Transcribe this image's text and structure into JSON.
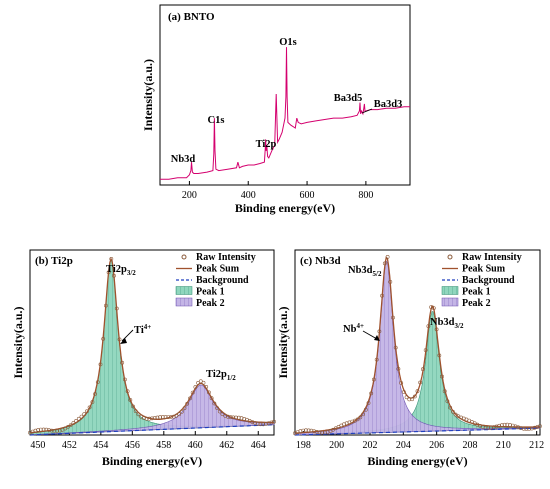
{
  "colors": {
    "survey_line": "#d4006e",
    "peak_sum": "#a0522d",
    "background": "#1f3fbf",
    "raw_marker": "#8a5a3a",
    "peak1_fill": "#7fd0b4",
    "peak2_fill": "#b8a6e0",
    "arrow": "#000000"
  },
  "chart_data": [
    {
      "id": "a",
      "type": "line",
      "title": "(a) BNTO",
      "xlabel": "Binding energy(eV)",
      "ylabel": "Intensity(a.u.)",
      "xlim": [
        100,
        950
      ],
      "xticks": [
        200,
        400,
        600,
        800
      ],
      "ylim": [
        0,
        1
      ],
      "annotations": [
        {
          "text": "Nb3d",
          "x": 207
        },
        {
          "text": "C1s",
          "x": 285
        },
        {
          "text": "Ti2p",
          "x": 459
        },
        {
          "text": "O1s",
          "x": 530
        },
        {
          "text": "Ba3d5",
          "x": 780
        },
        {
          "text": "Ba3d3",
          "x": 795
        }
      ],
      "series": [
        {
          "x": [
            100,
            130,
            160,
            190,
            200,
            205,
            207,
            210,
            215,
            230,
            260,
            280,
            283,
            285,
            287,
            290,
            300,
            330,
            360,
            365,
            370,
            380,
            400,
            420,
            440,
            455,
            458,
            459,
            461,
            463,
            466,
            470,
            480,
            490,
            495,
            500,
            505,
            515,
            525,
            528,
            530,
            532,
            535,
            545,
            560,
            565,
            570,
            580,
            600,
            630,
            660,
            690,
            720,
            750,
            770,
            778,
            780,
            782,
            785,
            790,
            793,
            795,
            797,
            800,
            815,
            840,
            870,
            900,
            930,
            950
          ],
          "y": [
            0.02,
            0.02,
            0.03,
            0.03,
            0.05,
            0.08,
            0.14,
            0.07,
            0.06,
            0.06,
            0.07,
            0.08,
            0.2,
            0.45,
            0.22,
            0.09,
            0.08,
            0.09,
            0.1,
            0.14,
            0.1,
            0.11,
            0.12,
            0.12,
            0.13,
            0.14,
            0.24,
            0.3,
            0.22,
            0.26,
            0.18,
            0.17,
            0.22,
            0.26,
            0.62,
            0.28,
            0.3,
            0.35,
            0.45,
            0.6,
            0.95,
            0.6,
            0.42,
            0.4,
            0.38,
            0.45,
            0.42,
            0.41,
            0.42,
            0.43,
            0.44,
            0.45,
            0.45,
            0.46,
            0.47,
            0.5,
            0.56,
            0.48,
            0.5,
            0.48,
            0.52,
            0.55,
            0.5,
            0.5,
            0.51,
            0.51,
            0.52,
            0.52,
            0.53,
            0.53
          ]
        }
      ]
    },
    {
      "id": "b",
      "type": "line",
      "title": "(b) Ti2p",
      "xlabel": "Binding energy(eV)",
      "ylabel": "Intensity(a.u.)",
      "xlim": [
        449.5,
        465
      ],
      "xticks": [
        450,
        452,
        454,
        456,
        458,
        460,
        462,
        464
      ],
      "ylim": [
        0,
        1.05
      ],
      "legend_position": "top-right",
      "legend": [
        "Raw Intensity",
        "Peak Sum",
        "Background",
        "Peak 1",
        "Peak 2"
      ],
      "annotations": [
        {
          "text": "Ti2p",
          "sub": "3/2",
          "x": 454.6
        },
        {
          "text": "Ti",
          "sup": "4+",
          "x": 455.2
        },
        {
          "text": "Ti2p",
          "sub": "1/2",
          "x": 460.3
        }
      ],
      "peaks": [
        {
          "name": "Peak 1",
          "center": 454.65,
          "height": 1.0,
          "width": 0.55
        },
        {
          "name": "Peak 2",
          "center": 460.35,
          "height": 0.25,
          "width": 0.95
        }
      ],
      "background": {
        "x": [
          449.5,
          465
        ],
        "y": [
          0.0,
          0.06
        ]
      }
    },
    {
      "id": "c",
      "type": "line",
      "title": "(c) Nb3d",
      "xlabel": "Binding energy(eV)",
      "ylabel": "Intensity(a.u.)",
      "xlim": [
        197.5,
        212.2
      ],
      "xticks": [
        198,
        200,
        202,
        204,
        206,
        208,
        210,
        212
      ],
      "ylim": [
        0,
        1.05
      ],
      "legend_position": "top-right",
      "legend": [
        "Raw Intensity",
        "Peak Sum",
        "Background",
        "Peak 1",
        "Peak 2"
      ],
      "annotations": [
        {
          "text": "Nb3d",
          "sub": "5/2",
          "x": 203.0
        },
        {
          "text": "Nb",
          "sup": "4+",
          "x": 203.4
        },
        {
          "text": "Nb3d",
          "sub": "3/2",
          "x": 205.8
        }
      ],
      "peaks": [
        {
          "name": "Peak 1",
          "center": 205.75,
          "height": 0.7,
          "width": 0.5
        },
        {
          "name": "Peak 2",
          "center": 203.0,
          "height": 1.0,
          "width": 0.5
        }
      ],
      "background": {
        "x": [
          197.5,
          212.2
        ],
        "y": [
          0.0,
          0.04
        ]
      }
    }
  ]
}
